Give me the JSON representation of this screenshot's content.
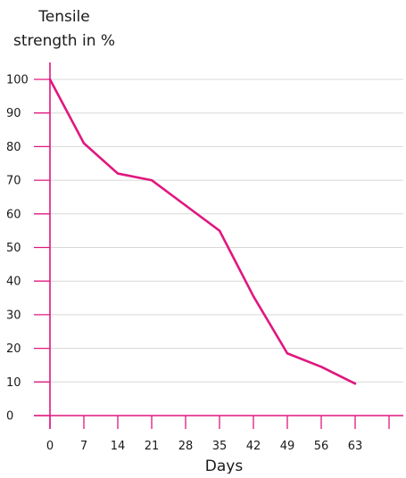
{
  "chart_data": {
    "type": "line",
    "ylabel_lines": [
      "Tensile",
      "strength in %"
    ],
    "xlabel": "Days",
    "x": [
      0,
      7,
      14,
      21,
      28,
      35,
      42,
      49,
      56,
      63
    ],
    "x_ticks": [
      "0",
      "7",
      "14",
      "21",
      "28",
      "35",
      "42",
      "49",
      "56",
      "63"
    ],
    "y_ticks": [
      "0",
      "10",
      "20",
      "30",
      "40",
      "50",
      "60",
      "70",
      "80",
      "90",
      "100"
    ],
    "xlim": [
      0,
      63
    ],
    "ylim": [
      0,
      100
    ],
    "series": [
      {
        "values": [
          100,
          81,
          72,
          70,
          62.5,
          55,
          35.5,
          18.5,
          14.5,
          9.5
        ]
      }
    ],
    "grid": "horizontal",
    "colors": {
      "line": "#e0177f",
      "axis": "#e0177f",
      "grid": "#d8d8d8"
    }
  }
}
